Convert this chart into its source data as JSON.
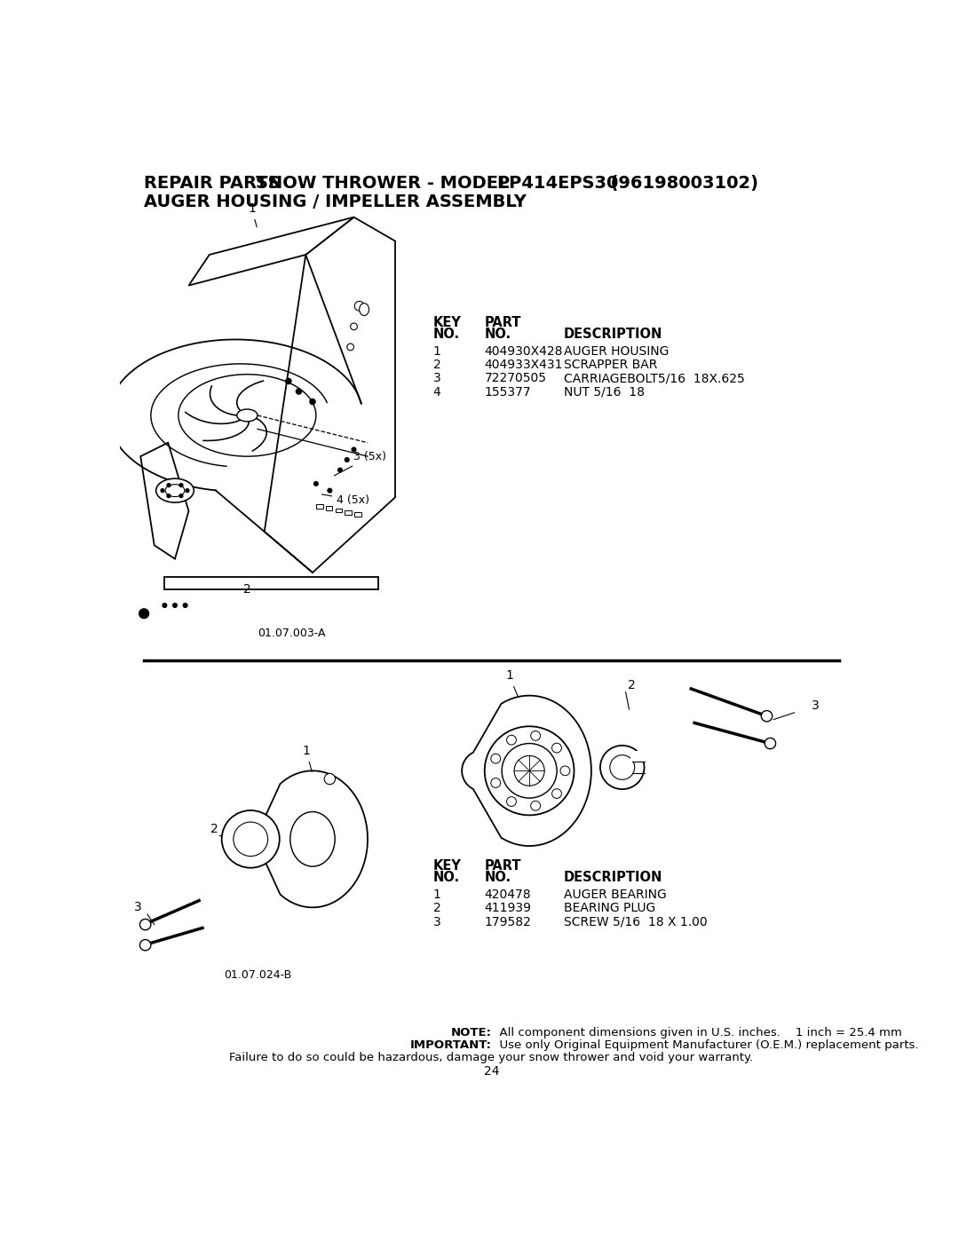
{
  "bg_color": "#ffffff",
  "text_color": "#000000",
  "title_bold1": "REPAIR PARTS",
  "title_normal": "     SNOW THROWER - MODEL  ",
  "title_bold2": "PP414EPS30",
  "title_paren": "  (96198003102)",
  "title_line2": "AUGER HOUSING / IMPELLER ASSEMBLY",
  "section1_label": "01.07.003-A",
  "section2_label": "01.07.024-B",
  "table1_rows": [
    [
      "1",
      "404930X428",
      "AUGER HOUSING"
    ],
    [
      "2",
      "404933X431",
      "SCRAPPER BAR"
    ],
    [
      "3",
      "72270505",
      "CARRIAGEBOLT5/16  18X.625"
    ],
    [
      "4",
      "155377",
      "NUT 5/16  18"
    ]
  ],
  "table2_rows": [
    [
      "1",
      "420478",
      "AUGER BEARING"
    ],
    [
      "2",
      "411939",
      "BEARING PLUG"
    ],
    [
      "3",
      "179582",
      "SCREW 5/16  18 X 1.00"
    ]
  ],
  "note_bold1": "NOTE:",
  "note_text1": "  All component dimensions given in U.S. inches.    1 inch = 25.4 mm",
  "note_bold2": "IMPORTANT:",
  "note_text2": "  Use only Original Equipment Manufacturer (O.E.M.) replacement parts.",
  "note_text3": "Failure to do so could be hazardous, damage your snow thrower and void your warranty.",
  "page_num": "24"
}
